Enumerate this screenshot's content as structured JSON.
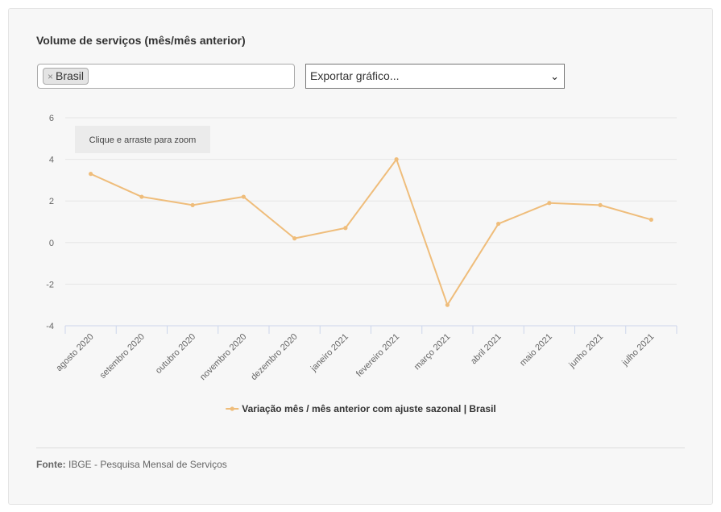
{
  "title": "Volume de serviços (mês/mês anterior)",
  "filter": {
    "tag_label": "Brasil",
    "remove_symbol": "×"
  },
  "export": {
    "label": "Exportar gráfico..."
  },
  "zoom_hint": "Clique e arraste para zoom",
  "source": {
    "label": "Fonte:",
    "text": " IBGE - Pesquisa Mensal de Serviços"
  },
  "colors": {
    "series": "#efbd7b",
    "grid": "#e6e6e6",
    "axis": "#ccd6eb"
  },
  "chart_data": {
    "type": "line",
    "categories": [
      "agosto 2020",
      "setembro 2020",
      "outubro 2020",
      "novembro 2020",
      "dezembro 2020",
      "janeiro 2021",
      "fevereiro 2021",
      "março 2021",
      "abril 2021",
      "maio 2021",
      "junho 2021",
      "julho 2021"
    ],
    "series": [
      {
        "name": "Variação mês / mês anterior com ajuste sazonal | Brasil",
        "values": [
          3.3,
          2.2,
          1.8,
          2.2,
          0.2,
          0.7,
          4.0,
          -3.0,
          0.9,
          1.9,
          1.8,
          1.1
        ]
      }
    ],
    "ylim": [
      -4,
      6
    ],
    "yticks": [
      -4,
      -2,
      0,
      2,
      4,
      6
    ],
    "ytick_labels": [
      "-4",
      "-2",
      "0",
      "2",
      "4",
      "6"
    ],
    "grid": true,
    "legend": "bottom-center"
  }
}
